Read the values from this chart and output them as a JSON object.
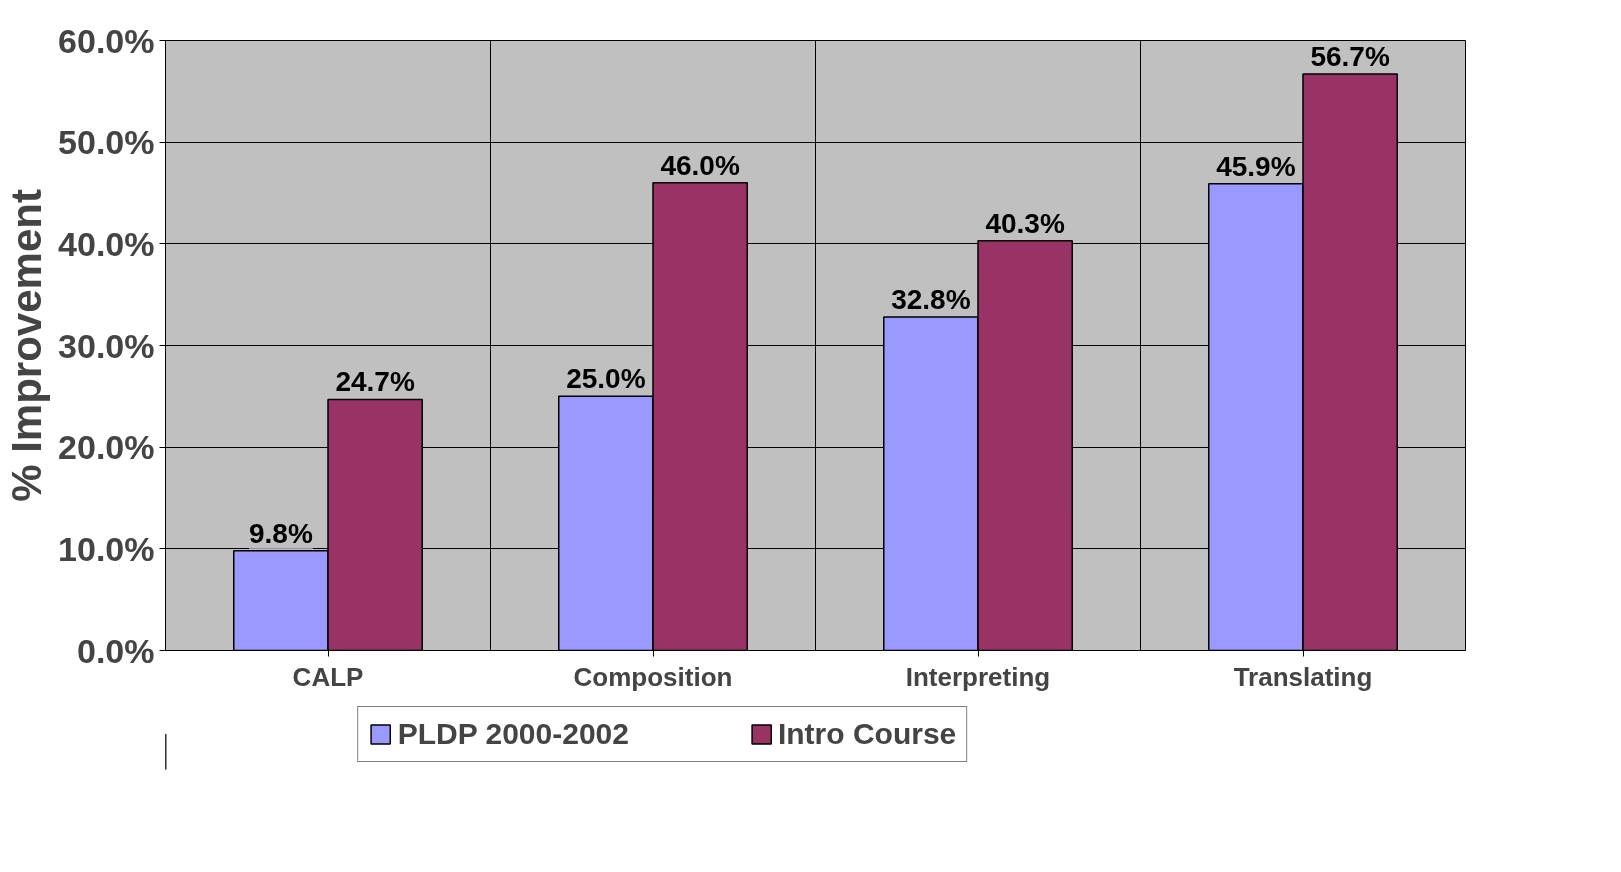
{
  "chart_data": {
    "type": "bar",
    "ylabel": "% Improvement",
    "categories": [
      "CALP",
      "Composition",
      "Interpreting",
      "Translating"
    ],
    "series": [
      {
        "name": "PLDP 2000-2002",
        "color": "#9999ff",
        "values": [
          9.8,
          25.0,
          32.8,
          45.9
        ],
        "value_labels": [
          "9.8%",
          "25.0%",
          "32.8%",
          "45.9%"
        ]
      },
      {
        "name": "Intro Course",
        "color": "#993366",
        "values": [
          24.7,
          46.0,
          40.3,
          56.7
        ],
        "value_labels": [
          "24.7%",
          "46.0%",
          "40.3%",
          "56.7%"
        ]
      }
    ],
    "ylim": [
      0,
      60
    ],
    "yticks": [
      {
        "value": 0,
        "label": "0.0%"
      },
      {
        "value": 10,
        "label": "10.0%"
      },
      {
        "value": 20,
        "label": "20.0%"
      },
      {
        "value": 30,
        "label": "30.0%"
      },
      {
        "value": 40,
        "label": "40.0%"
      },
      {
        "value": 50,
        "label": "50.0%"
      },
      {
        "value": 60,
        "label": "60.0%"
      }
    ],
    "grid": true,
    "legend": "bottom"
  }
}
